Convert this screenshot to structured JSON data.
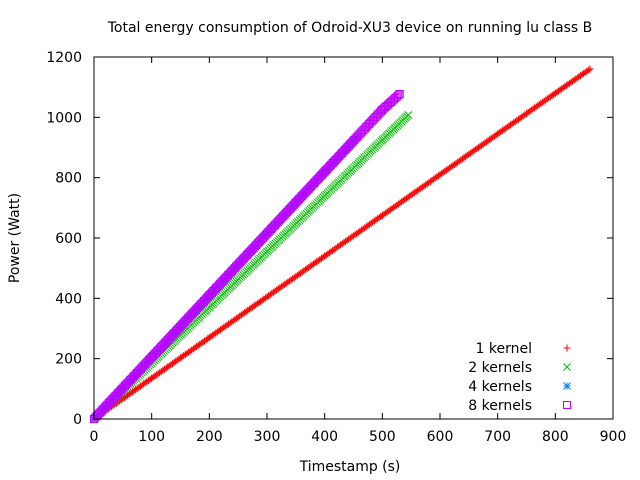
{
  "chart_data": {
    "type": "scatter",
    "title": "Total energy consumption of Odroid-XU3 device on running lu class B",
    "xlabel": "Timestamp (s)",
    "ylabel": "Power (Watt)",
    "xlim": [
      0,
      900
    ],
    "ylim": [
      0,
      1200
    ],
    "xticks": [
      "0",
      "100",
      "200",
      "300",
      "400",
      "500",
      "600",
      "700",
      "800",
      "900"
    ],
    "yticks": [
      "0",
      "200",
      "400",
      "600",
      "800",
      "1000",
      "1200"
    ],
    "grid": false,
    "legend_position": "bottom-right",
    "series": [
      {
        "name": "1 kernel",
        "color": "#ff0000",
        "marker": "plus",
        "x": [
          0,
          100,
          200,
          300,
          400,
          500,
          600,
          700,
          800,
          860
        ],
        "y": [
          0,
          135,
          270,
          405,
          540,
          675,
          810,
          945,
          1080,
          1160
        ]
      },
      {
        "name": "2 kernels",
        "color": "#00c000",
        "marker": "cross",
        "x": [
          0,
          100,
          200,
          300,
          400,
          500,
          545
        ],
        "y": [
          0,
          185,
          370,
          555,
          740,
          925,
          1008
        ]
      },
      {
        "name": "4 kernels",
        "color": "#0080ff",
        "marker": "asterisk",
        "x": [
          0,
          100,
          200,
          300,
          400,
          455
        ],
        "y": [
          0,
          205,
          410,
          615,
          820,
          932
        ]
      },
      {
        "name": "8 kernels",
        "color": "#c000ff",
        "marker": "square",
        "x": [
          0,
          100,
          200,
          300,
          400,
          500,
          530
        ],
        "y": [
          0,
          205,
          410,
          615,
          820,
          1025,
          1077
        ]
      }
    ]
  }
}
